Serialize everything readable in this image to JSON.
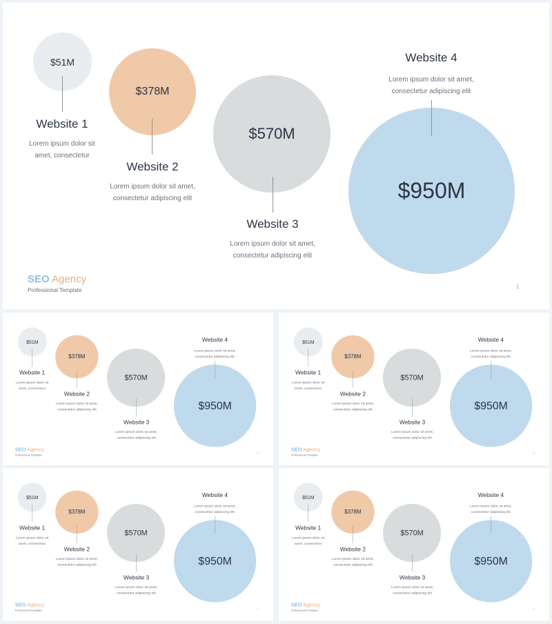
{
  "brand": {
    "seo": "SEO",
    "agency": "Agency",
    "subtitle": "Professional Template"
  },
  "page_number": "1",
  "items": [
    {
      "value": "$51M",
      "title": "Website 1",
      "description": "Lorem ipsum dolor sit amet, consectetur"
    },
    {
      "value": "$378M",
      "title": "Website 2",
      "description": "Lorem ipsum dolor sit amet, consectetur adipiscing elit"
    },
    {
      "value": "$570M",
      "title": "Website 3",
      "description": "Lorem ipsum dolor sit amet, consectetur adipiscing elit"
    },
    {
      "value": "$950M",
      "title": "Website 4",
      "description": "Lorem ipsum dolor sit amet, consectetur adipiscing elit"
    }
  ],
  "colors": {
    "bubble1": "#e9edf0",
    "bubble2": "#f0c9a8",
    "bubble3": "#d8dcdc",
    "bubble4": "#bfdaed"
  }
}
